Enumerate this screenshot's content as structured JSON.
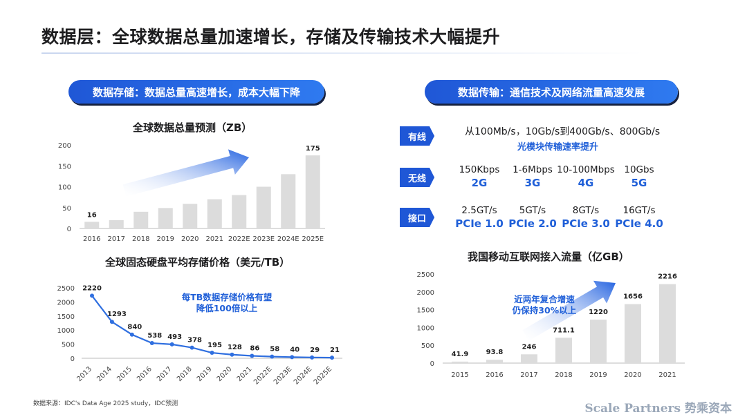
{
  "page_title": "数据层：全球数据总量加速增长，存储及传输技术大幅提升",
  "left_section": {
    "title": "数据存储：数据总量高速增长，成本大幅下降"
  },
  "right_section": {
    "title": "数据传输：通信技术及网络流量高速发展"
  },
  "transmission": {
    "wired": {
      "tag": "有线",
      "text": "从100Mb/s，10Gb/s到400Gb/s、800Gb/s",
      "sub": "光模块传输速率提升"
    },
    "wireless": {
      "tag": "无线",
      "items": [
        {
          "speed": "150Kbps",
          "gen": "2G"
        },
        {
          "speed": "1-6Mbps",
          "gen": "3G"
        },
        {
          "speed": "10-100Mbps",
          "gen": "4G"
        },
        {
          "speed": "10Gbs",
          "gen": "5G"
        }
      ]
    },
    "interface": {
      "tag": "接口",
      "items": [
        {
          "speed": "2.5GT/s",
          "gen": "PCIe 1.0"
        },
        {
          "speed": "5GT/s",
          "gen": "PCIe 2.0"
        },
        {
          "speed": "8GT/s",
          "gen": "PCIe 3.0"
        },
        {
          "speed": "16GT/s",
          "gen": "PCIe 4.0"
        }
      ]
    }
  },
  "colors": {
    "accent": "#1f5fd8",
    "bar": "#dcdcdc",
    "line": "#2f6fe0"
  },
  "chart_data": [
    {
      "type": "bar",
      "title": "全球数据总量预测（ZB）",
      "categories": [
        "2016",
        "2017",
        "2018",
        "2019",
        "2020",
        "2021",
        "2022E",
        "2023E",
        "2024E",
        "2025E"
      ],
      "values": [
        16,
        20,
        40,
        49,
        59,
        70,
        80,
        100,
        130,
        175
      ],
      "data_labels": {
        "0": "16",
        "9": "175"
      },
      "yticks": [
        0,
        50,
        100,
        150,
        200
      ],
      "ylim": [
        0,
        200
      ]
    },
    {
      "type": "line",
      "title": "全球固态硬盘平均存储价格（美元/TB）",
      "categories": [
        "2013",
        "2014",
        "2015",
        "2016",
        "2017",
        "2018",
        "2019",
        "2020",
        "2021",
        "2022E",
        "2023E",
        "2024E",
        "2025E"
      ],
      "values": [
        2220,
        1293,
        840,
        538,
        493,
        378,
        195,
        128,
        86,
        58,
        40,
        29,
        21
      ],
      "yticks": [
        0,
        500,
        1000,
        1500,
        2000,
        2500
      ],
      "ylim": [
        0,
        2500
      ],
      "annotation": [
        "每TB数据存储价格有望",
        "降低100倍以上"
      ]
    },
    {
      "type": "bar",
      "title": "我国移动互联网接入流量（亿GB）",
      "categories": [
        "2015",
        "2016",
        "2017",
        "2018",
        "2019",
        "2020",
        "2021"
      ],
      "values": [
        41.9,
        93.8,
        246,
        711.1,
        1220,
        1656,
        2216
      ],
      "data_labels": [
        "41.9",
        "93.8",
        "246",
        "711.1",
        "1220",
        "1656",
        "2216"
      ],
      "yticks": [
        0,
        500,
        1000,
        1500,
        2000,
        2500
      ],
      "ylim": [
        0,
        2500
      ],
      "annotation": [
        "近两年复合增速",
        "仍保持30%以上"
      ]
    }
  ],
  "footer": {
    "source": "数据来源：IDC's Data Age 2025 study，IDC预测",
    "brand": "Scale Partners 势乘资本"
  }
}
